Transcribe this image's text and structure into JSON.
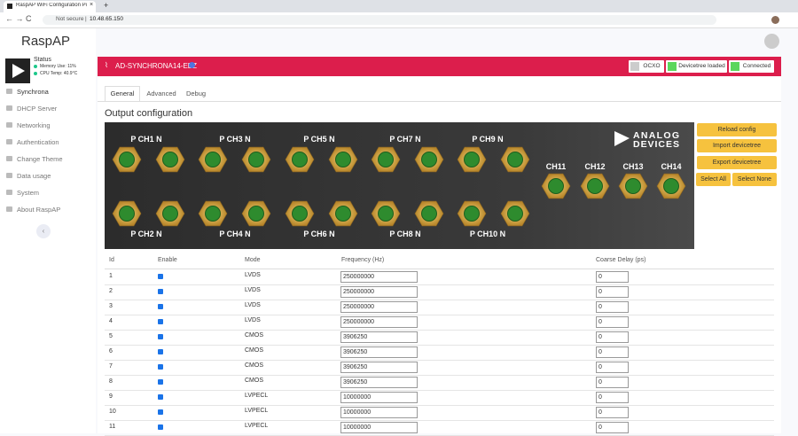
{
  "browser": {
    "tab_title": "RaspAP WiFi Configuration Porta",
    "security": "Not secure",
    "url": "10.48.65.150"
  },
  "sidebar": {
    "brand": "RaspAP",
    "status": {
      "title": "Status",
      "memory": "Memory Use: 11%",
      "cpu": "CPU Temp: 40.9°C"
    },
    "nav": [
      "Synchrona",
      "DHCP Server",
      "Networking",
      "Authentication",
      "Change Theme",
      "Data usage",
      "System",
      "About RaspAP"
    ]
  },
  "header": {
    "title": "AD-SYNCHRONA14-EBZ",
    "badges": [
      {
        "label": "OCXO",
        "active": false
      },
      {
        "label": "Devicetree loaded",
        "active": true
      },
      {
        "label": "Connected",
        "active": true
      }
    ]
  },
  "tabs": {
    "items": [
      "General",
      "Advanced",
      "Debug"
    ],
    "active": 0
  },
  "section_title": "Output configuration",
  "board": {
    "brand": [
      "ANALOG",
      "DEVICES"
    ],
    "top_labels": [
      "P CH1 N",
      "P CH3 N",
      "P CH5 N",
      "P CH7 N",
      "P CH9 N"
    ],
    "bottom_labels": [
      "P CH2 N",
      "P CH4 N",
      "P CH6 N",
      "P CH8 N",
      "P CH10 N"
    ],
    "side_labels": [
      "CH11",
      "CH12",
      "CH13",
      "CH14"
    ]
  },
  "buttons": [
    "Reload config",
    "Import devicetree",
    "Export devicetree",
    "Select All",
    "Select None"
  ],
  "table": {
    "columns": [
      "Id",
      "Enable",
      "Mode",
      "Frequency (Hz)",
      "Coarse Delay (ps)"
    ],
    "rows": [
      {
        "id": 1,
        "enabled": true,
        "mode": "LVDS",
        "frequency": 250000000,
        "delay": 0
      },
      {
        "id": 2,
        "enabled": true,
        "mode": "LVDS",
        "frequency": 250000000,
        "delay": 0
      },
      {
        "id": 3,
        "enabled": true,
        "mode": "LVDS",
        "frequency": 250000000,
        "delay": 0
      },
      {
        "id": 4,
        "enabled": true,
        "mode": "LVDS",
        "frequency": 250000000,
        "delay": 0
      },
      {
        "id": 5,
        "enabled": true,
        "mode": "CMOS",
        "frequency": 3906250,
        "delay": 0
      },
      {
        "id": 6,
        "enabled": true,
        "mode": "CMOS",
        "frequency": 3906250,
        "delay": 0
      },
      {
        "id": 7,
        "enabled": true,
        "mode": "CMOS",
        "frequency": 3906250,
        "delay": 0
      },
      {
        "id": 8,
        "enabled": true,
        "mode": "CMOS",
        "frequency": 3906250,
        "delay": 0
      },
      {
        "id": 9,
        "enabled": true,
        "mode": "LVPECL",
        "frequency": 10000000,
        "delay": 0
      },
      {
        "id": 10,
        "enabled": true,
        "mode": "LVPECL",
        "frequency": 10000000,
        "delay": 0
      },
      {
        "id": 11,
        "enabled": true,
        "mode": "LVPECL",
        "frequency": 10000000,
        "delay": 0
      }
    ]
  }
}
